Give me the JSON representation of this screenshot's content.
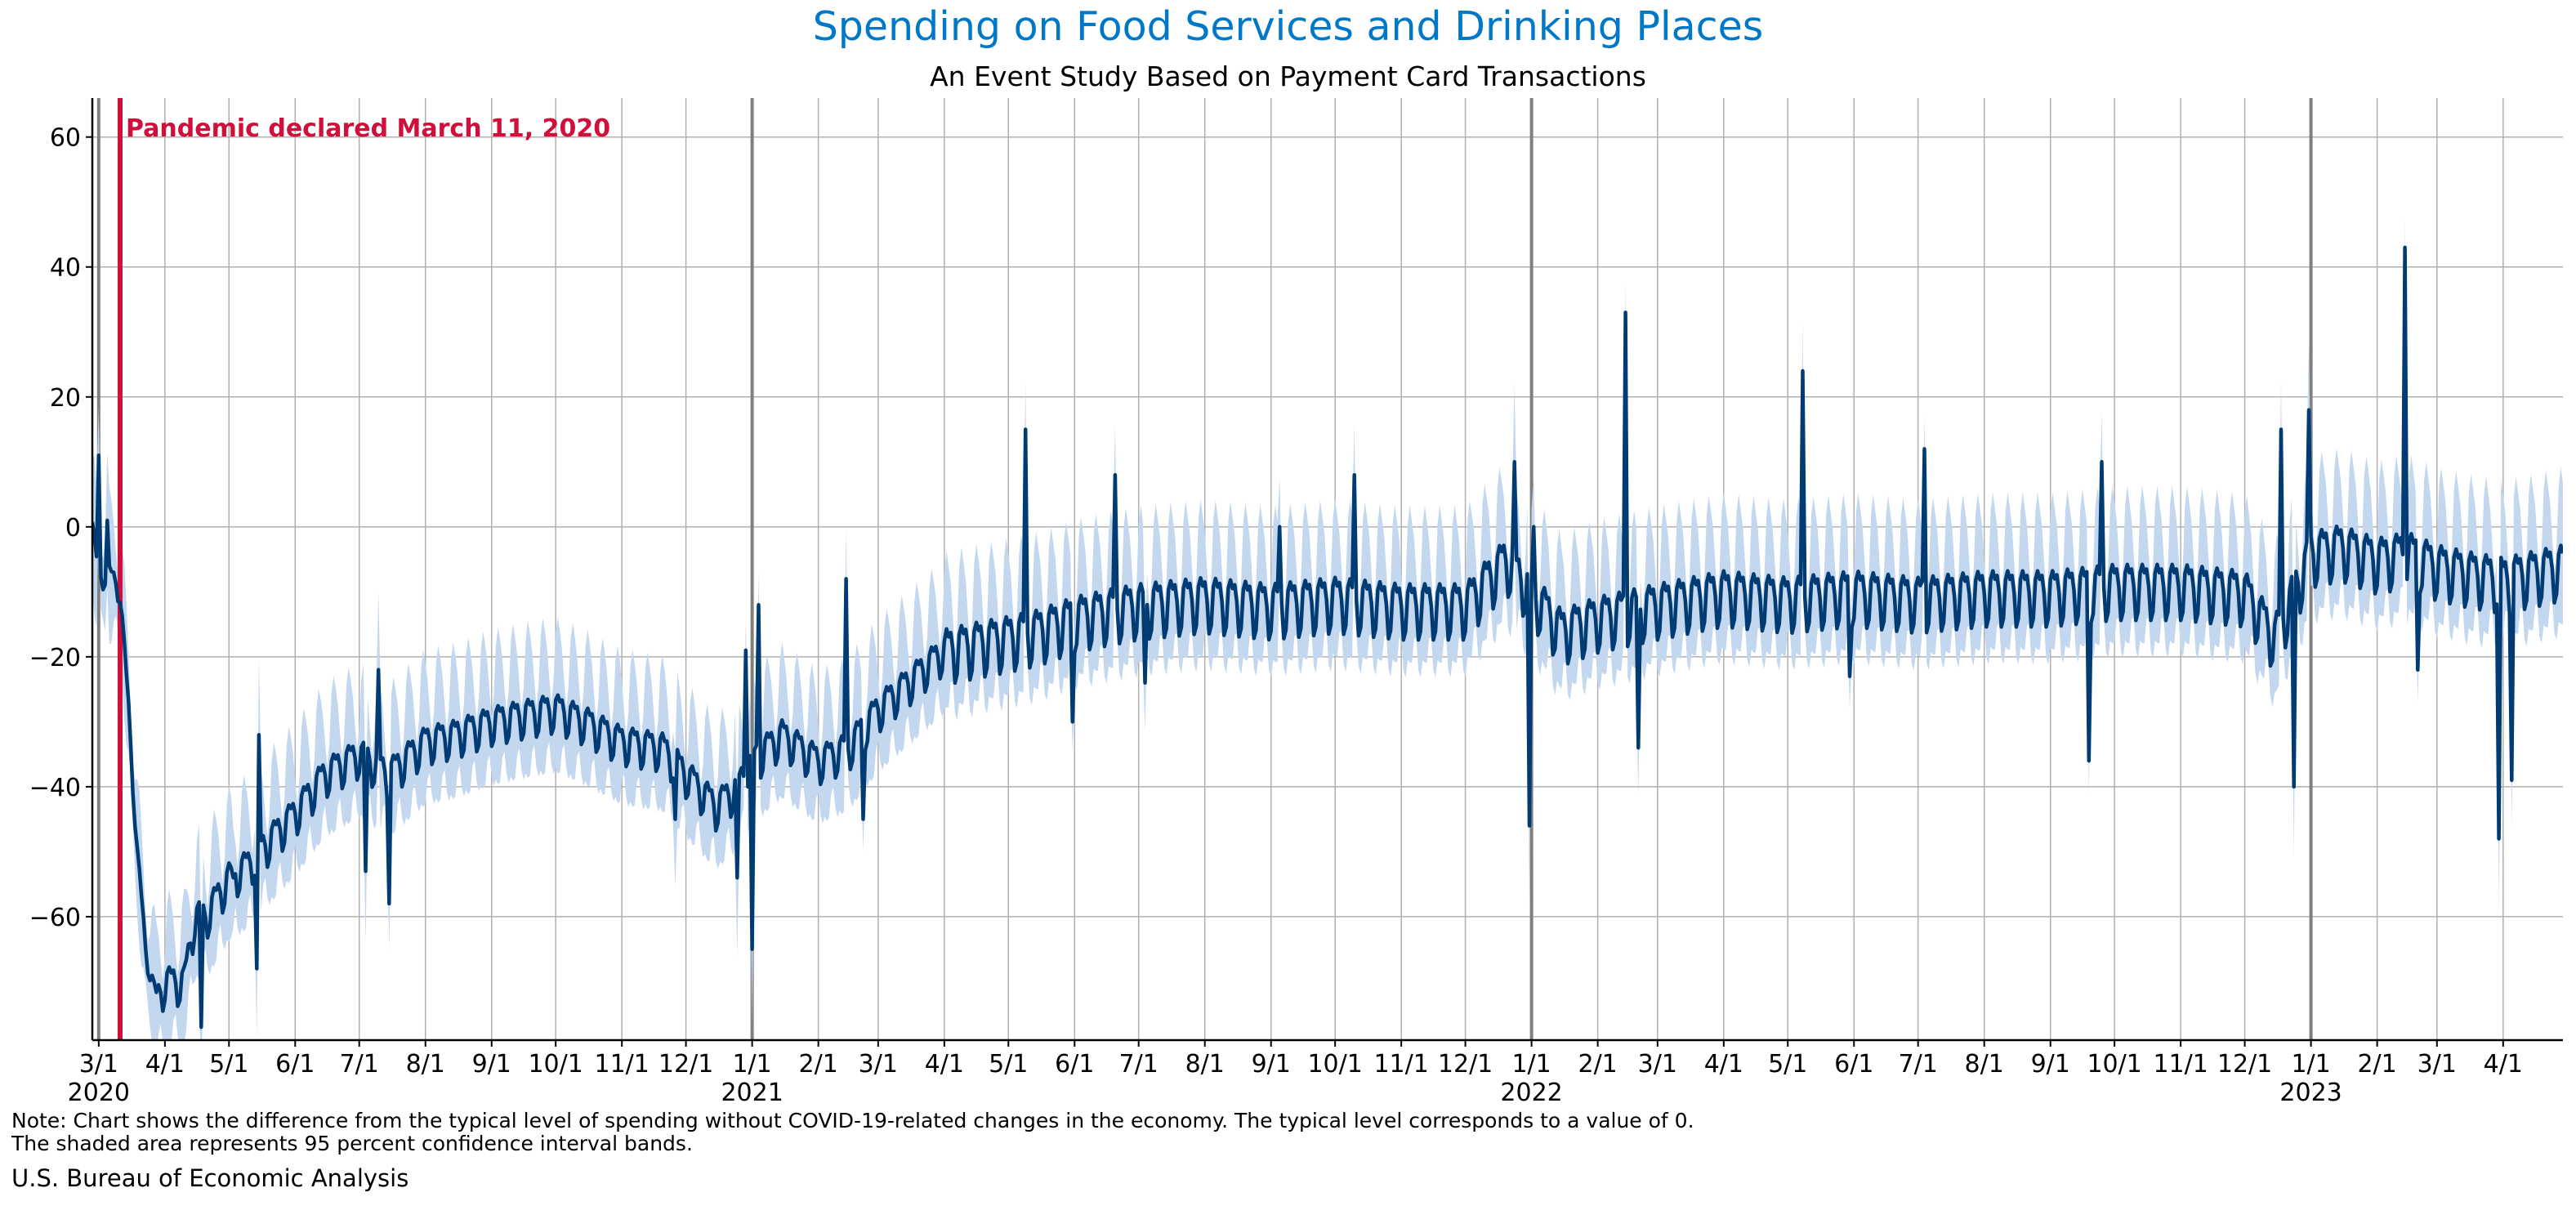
{
  "chart_data": {
    "type": "line",
    "title": "Spending on Food Services and Drinking Places",
    "subtitle": "An Event Study Based on Payment Card Transactions",
    "xlabel": "",
    "ylabel": "",
    "x_range": [
      "2020-02-27",
      "2023-04-29"
    ],
    "ylim": [
      -79,
      66
    ],
    "y_ticks": [
      -60,
      -40,
      -20,
      0,
      20,
      40,
      60
    ],
    "y_tick_labels": [
      "−60",
      "−40",
      "−20",
      "0",
      "20",
      "40",
      "60"
    ],
    "x_ticks": [
      {
        "date": "2020-03-01",
        "label": "3/1",
        "year": "2020"
      },
      {
        "date": "2020-04-01",
        "label": "4/1"
      },
      {
        "date": "2020-05-01",
        "label": "5/1"
      },
      {
        "date": "2020-06-01",
        "label": "6/1"
      },
      {
        "date": "2020-07-01",
        "label": "7/1"
      },
      {
        "date": "2020-08-01",
        "label": "8/1"
      },
      {
        "date": "2020-09-01",
        "label": "9/1"
      },
      {
        "date": "2020-10-01",
        "label": "10/1"
      },
      {
        "date": "2020-11-01",
        "label": "11/1"
      },
      {
        "date": "2020-12-01",
        "label": "12/1"
      },
      {
        "date": "2021-01-01",
        "label": "1/1",
        "year": "2021"
      },
      {
        "date": "2021-02-01",
        "label": "2/1"
      },
      {
        "date": "2021-03-01",
        "label": "3/1"
      },
      {
        "date": "2021-04-01",
        "label": "4/1"
      },
      {
        "date": "2021-05-01",
        "label": "5/1"
      },
      {
        "date": "2021-06-01",
        "label": "6/1"
      },
      {
        "date": "2021-07-01",
        "label": "7/1"
      },
      {
        "date": "2021-08-01",
        "label": "8/1"
      },
      {
        "date": "2021-09-01",
        "label": "9/1"
      },
      {
        "date": "2021-10-01",
        "label": "10/1"
      },
      {
        "date": "2021-11-01",
        "label": "11/1"
      },
      {
        "date": "2021-12-01",
        "label": "12/1"
      },
      {
        "date": "2022-01-01",
        "label": "1/1",
        "year": "2022"
      },
      {
        "date": "2022-02-01",
        "label": "2/1"
      },
      {
        "date": "2022-03-01",
        "label": "3/1"
      },
      {
        "date": "2022-04-01",
        "label": "4/1"
      },
      {
        "date": "2022-05-01",
        "label": "5/1"
      },
      {
        "date": "2022-06-01",
        "label": "6/1"
      },
      {
        "date": "2022-07-01",
        "label": "7/1"
      },
      {
        "date": "2022-08-01",
        "label": "8/1"
      },
      {
        "date": "2022-09-01",
        "label": "9/1"
      },
      {
        "date": "2022-10-01",
        "label": "10/1"
      },
      {
        "date": "2022-11-01",
        "label": "11/1"
      },
      {
        "date": "2022-12-01",
        "label": "12/1"
      },
      {
        "date": "2023-01-01",
        "label": "1/1",
        "year": "2023"
      },
      {
        "date": "2023-02-01",
        "label": "2/1"
      },
      {
        "date": "2023-03-01",
        "label": "3/1"
      },
      {
        "date": "2023-04-01",
        "label": "4/1"
      }
    ],
    "grid": true,
    "event_line": {
      "date": "2020-03-11",
      "label": "Pandemic declared March 11, 2020"
    },
    "series_points": [
      [
        "2020-02-27",
        0
      ],
      [
        "2020-03-01",
        -8
      ],
      [
        "2020-03-05",
        -7
      ],
      [
        "2020-03-08",
        -8
      ],
      [
        "2020-03-11",
        -10
      ],
      [
        "2020-03-15",
        -28
      ],
      [
        "2020-03-19",
        -50
      ],
      [
        "2020-03-23",
        -65
      ],
      [
        "2020-03-28",
        -73
      ],
      [
        "2020-04-01",
        -70
      ],
      [
        "2020-04-10",
        -70
      ],
      [
        "2020-04-15",
        -60
      ],
      [
        "2020-04-20",
        -60
      ],
      [
        "2020-05-01",
        -54
      ],
      [
        "2020-05-10",
        -52
      ],
      [
        "2020-05-15",
        -50
      ],
      [
        "2020-06-01",
        -44
      ],
      [
        "2020-06-15",
        -38
      ],
      [
        "2020-07-01",
        -35
      ],
      [
        "2020-07-15",
        -38
      ],
      [
        "2020-08-01",
        -33
      ],
      [
        "2020-08-15",
        -32
      ],
      [
        "2020-09-01",
        -30
      ],
      [
        "2020-09-15",
        -29
      ],
      [
        "2020-10-01",
        -28
      ],
      [
        "2020-10-15",
        -30
      ],
      [
        "2020-11-01",
        -33
      ],
      [
        "2020-11-20",
        -34
      ],
      [
        "2020-12-01",
        -38
      ],
      [
        "2020-12-15",
        -43
      ],
      [
        "2020-12-25",
        -40
      ],
      [
        "2021-01-01",
        -36
      ],
      [
        "2021-01-15",
        -32
      ],
      [
        "2021-02-01",
        -36
      ],
      [
        "2021-02-15",
        -34
      ],
      [
        "2021-03-01",
        -28
      ],
      [
        "2021-03-15",
        -24
      ],
      [
        "2021-04-01",
        -19
      ],
      [
        "2021-04-15",
        -18
      ],
      [
        "2021-05-01",
        -17
      ],
      [
        "2021-05-15",
        -16
      ],
      [
        "2021-06-01",
        -14
      ],
      [
        "2021-06-15",
        -13
      ],
      [
        "2021-07-01",
        -12
      ],
      [
        "2021-08-01",
        -11
      ],
      [
        "2021-09-01",
        -12
      ],
      [
        "2021-10-01",
        -11
      ],
      [
        "2021-11-01",
        -12
      ],
      [
        "2021-12-01",
        -12
      ],
      [
        "2021-12-20",
        -5
      ],
      [
        "2022-01-01",
        -10
      ],
      [
        "2022-01-15",
        -16
      ],
      [
        "2022-02-01",
        -14
      ],
      [
        "2022-03-01",
        -12
      ],
      [
        "2022-04-01",
        -10
      ],
      [
        "2022-05-01",
        -11
      ],
      [
        "2022-06-01",
        -10
      ],
      [
        "2022-07-01",
        -11
      ],
      [
        "2022-08-01",
        -10
      ],
      [
        "2022-09-01",
        -10
      ],
      [
        "2022-10-01",
        -9
      ],
      [
        "2022-11-01",
        -9
      ],
      [
        "2022-12-01",
        -10
      ],
      [
        "2022-12-15",
        -17
      ],
      [
        "2023-01-01",
        -4
      ],
      [
        "2023-01-15",
        -3
      ],
      [
        "2023-02-01",
        -5
      ],
      [
        "2023-02-15",
        -4
      ],
      [
        "2023-03-01",
        -6
      ],
      [
        "2023-03-15",
        -7
      ],
      [
        "2023-04-01",
        -8
      ],
      [
        "2023-04-29",
        -6
      ]
    ],
    "spikes": [
      [
        "2020-03-01",
        11
      ],
      [
        "2020-03-05",
        1
      ],
      [
        "2020-04-18",
        -77
      ],
      [
        "2020-05-03",
        -54
      ],
      [
        "2020-05-14",
        -68
      ],
      [
        "2020-05-15",
        -32
      ],
      [
        "2020-07-04",
        -53
      ],
      [
        "2020-07-10",
        -22
      ],
      [
        "2020-07-15",
        -58
      ],
      [
        "2020-11-26",
        -45
      ],
      [
        "2020-12-25",
        -54
      ],
      [
        "2020-12-29",
        -19
      ],
      [
        "2021-01-01",
        -65
      ],
      [
        "2021-01-04",
        -12
      ],
      [
        "2021-02-14",
        -8
      ],
      [
        "2021-02-22",
        -45
      ],
      [
        "2021-05-09",
        15
      ],
      [
        "2021-05-31",
        -30
      ],
      [
        "2021-06-20",
        8
      ],
      [
        "2021-07-04",
        -24
      ],
      [
        "2021-09-05",
        0
      ],
      [
        "2021-10-10",
        8
      ],
      [
        "2021-12-24",
        10
      ],
      [
        "2021-12-31",
        -46
      ],
      [
        "2022-01-02",
        0
      ],
      [
        "2022-02-14",
        33
      ],
      [
        "2022-02-20",
        -34
      ],
      [
        "2022-05-08",
        24
      ],
      [
        "2022-05-30",
        -23
      ],
      [
        "2022-07-04",
        12
      ],
      [
        "2022-09-19",
        -36
      ],
      [
        "2022-09-25",
        10
      ],
      [
        "2022-12-18",
        15
      ],
      [
        "2022-12-24",
        -40
      ],
      [
        "2022-12-31",
        18
      ],
      [
        "2023-02-14",
        43
      ],
      [
        "2023-02-20",
        -22
      ],
      [
        "2023-03-30",
        -48
      ],
      [
        "2023-04-05",
        -39
      ]
    ],
    "band_halfwidth": 11
  },
  "colors": {
    "line": "#003b73",
    "band": "#c3d7ee",
    "event": "#d0103a",
    "grid": "#b0b0b0",
    "year_grid": "#7f7f7f",
    "title": "#0078c8"
  },
  "notes": {
    "line1": "Note: Chart shows the difference from the typical level of spending without COVID-19-related changes in the economy. The typical level corresponds to a value of 0.",
    "line2": "The shaded area represents 95 percent confidence interval bands.",
    "source": "U.S. Bureau of Economic Analysis"
  }
}
